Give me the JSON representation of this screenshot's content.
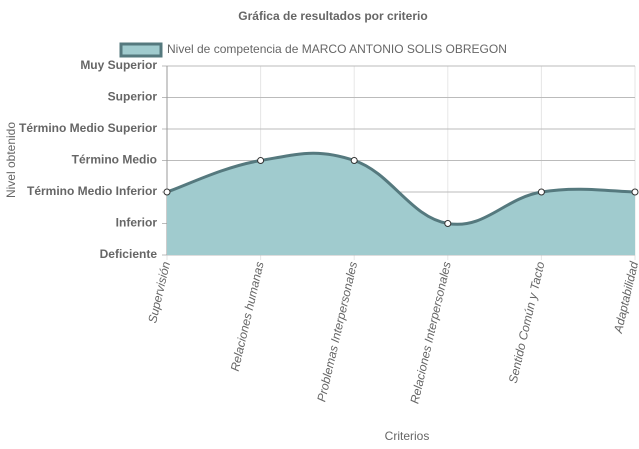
{
  "chart_data": {
    "type": "line",
    "title": "Gráfica de resultados por criterio",
    "x_label": "Criterios",
    "y_label": "Nivel obtenido",
    "categories": [
      "Supervisión",
      "Relaciones humanas",
      "Problemas Interpersonales",
      "Relaciones Interpersonales",
      "Sentido Común y Tacto",
      "Adaptabilidad"
    ],
    "series": [
      {
        "name": "Nivel de competencia de MARCO ANTONIO SOLIS OBREGON",
        "color": "#55797e",
        "fill": "#a0cbce",
        "values": [
          2,
          3,
          3,
          1,
          2,
          2
        ]
      }
    ],
    "ylim": [
      0,
      6
    ],
    "yticks": [
      {
        "value": 0,
        "label": "Deficiente"
      },
      {
        "value": 1,
        "label": "Inferior"
      },
      {
        "value": 2,
        "label": "Término Medio Inferior"
      },
      {
        "value": 3,
        "label": "Término Medio"
      },
      {
        "value": 4,
        "label": "Término Medio Superior"
      },
      {
        "value": 5,
        "label": "Superior"
      },
      {
        "value": 6,
        "label": "Muy Superior"
      }
    ],
    "grid": true
  }
}
